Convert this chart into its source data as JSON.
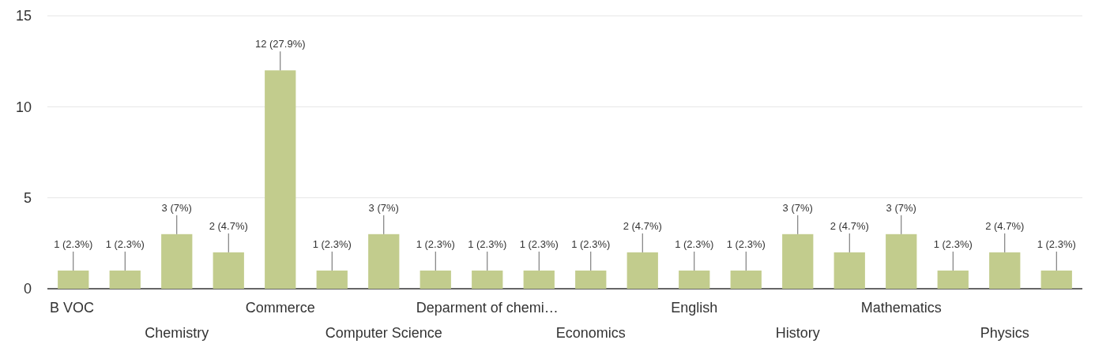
{
  "chart_data": {
    "type": "bar",
    "categories": [
      "B VOC",
      null,
      "Chemistry",
      null,
      "Commerce",
      null,
      "Computer Science",
      null,
      "Deparment of chemi…",
      null,
      "Economics",
      null,
      "English",
      null,
      "History",
      null,
      "Mathematics",
      null,
      "Physics",
      null
    ],
    "values": [
      1,
      1,
      3,
      2,
      12,
      1,
      3,
      1,
      1,
      1,
      1,
      2,
      1,
      1,
      3,
      2,
      3,
      1,
      2,
      1
    ],
    "value_labels": [
      "1 (2.3%)",
      "1 (2.3%)",
      "3 (7%)",
      "2 (4.7%)",
      "12 (27.9%)",
      "1 (2.3%)",
      "3 (7%)",
      "1 (2.3%)",
      "1 (2.3%)",
      "1 (2.3%)",
      "1 (2.3%)",
      "2 (4.7%)",
      "1 (2.3%)",
      "1 (2.3%)",
      "3 (7%)",
      "2 (4.7%)",
      "3 (7%)",
      "1 (2.3%)",
      "2 (4.7%)",
      "1 (2.3%)"
    ],
    "color": "#c2cc8d",
    "ylim": [
      0,
      15
    ],
    "yticks": [
      0,
      5,
      10,
      15
    ],
    "grid": "y"
  }
}
